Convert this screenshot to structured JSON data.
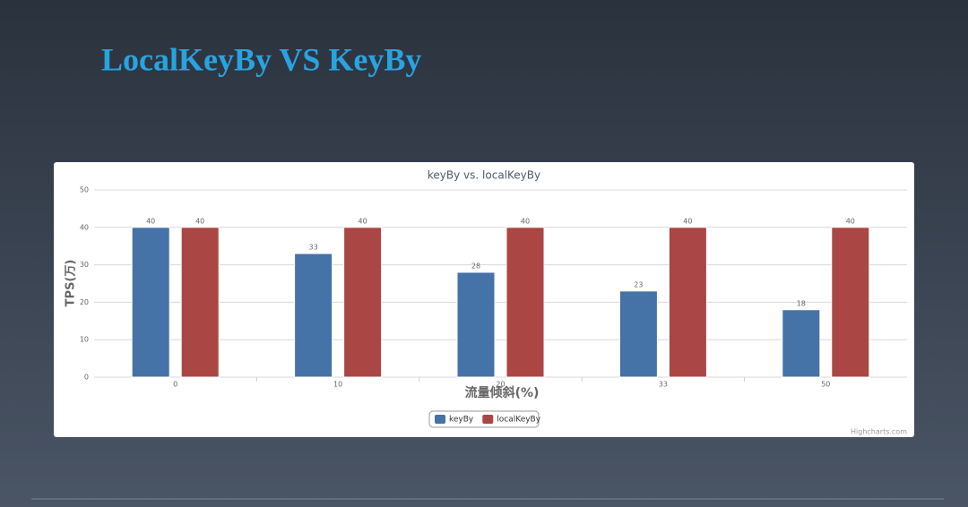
{
  "slide_title": "LocalKeyBy VS KeyBy",
  "chart_data": {
    "type": "bar",
    "title": "keyBy vs. localKeyBy",
    "x_label": "流量倾斜(%)",
    "y_label": "TPS(万)",
    "categories": [
      "0",
      "10",
      "20",
      "33",
      "50"
    ],
    "series": [
      {
        "name": "keyBy",
        "color": "#4572A7",
        "values": [
          40,
          33,
          28,
          23,
          18
        ]
      },
      {
        "name": "localKeyBy",
        "color": "#AA4643",
        "values": [
          40,
          40,
          40,
          40,
          40
        ]
      }
    ],
    "ylim": [
      0,
      50
    ],
    "yticks": [
      0,
      10,
      20,
      30,
      40,
      50
    ],
    "grid": true,
    "legend": "bottom",
    "credits": "Highcharts.com"
  }
}
